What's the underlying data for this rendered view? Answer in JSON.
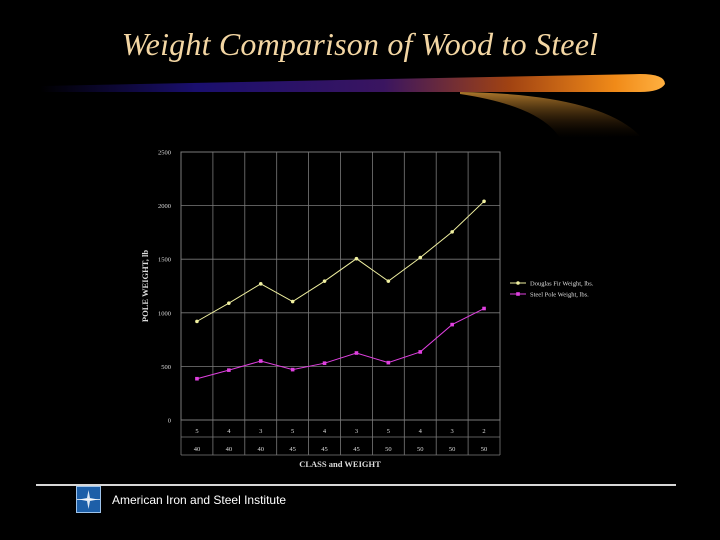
{
  "slide": {
    "title": "Weight Comparison of Wood to Steel",
    "footer": "American Iron and Steel Institute",
    "logo_icon": "aisi-logo-icon"
  },
  "colors": {
    "title": "#f3d6a3",
    "swoosh_dark": "#1a0f6e",
    "swoosh_orange": "#e07a12",
    "series_douglas": "#f0f0a0",
    "series_steel": "#e040e0",
    "grid": "#7a7a7a",
    "axis_text": "#dddddd"
  },
  "chart_data": {
    "type": "line",
    "xlabel": "CLASS and WEIGHT",
    "ylabel": "POLE WEIGHT, lb",
    "ylim": [
      0,
      2500
    ],
    "yticks": [
      0,
      500,
      1000,
      1500,
      2000,
      2500
    ],
    "grid": true,
    "legend": "right",
    "categories": [
      {
        "class": "5",
        "weight": "40"
      },
      {
        "class": "4",
        "weight": "40"
      },
      {
        "class": "3",
        "weight": "40"
      },
      {
        "class": "5",
        "weight": "45"
      },
      {
        "class": "4",
        "weight": "45"
      },
      {
        "class": "3",
        "weight": "45"
      },
      {
        "class": "5",
        "weight": "50"
      },
      {
        "class": "4",
        "weight": "50"
      },
      {
        "class": "3",
        "weight": "50"
      },
      {
        "class": "2",
        "weight": "50"
      }
    ],
    "series": [
      {
        "name": "Douglas Fir Weight, lbs.",
        "values": [
          920,
          1090,
          1270,
          1105,
          1295,
          1505,
          1295,
          1515,
          1755,
          2040
        ]
      },
      {
        "name": "Steel Pole Weight, lbs.",
        "values": [
          385,
          465,
          550,
          470,
          530,
          625,
          535,
          635,
          890,
          1040
        ]
      }
    ]
  }
}
